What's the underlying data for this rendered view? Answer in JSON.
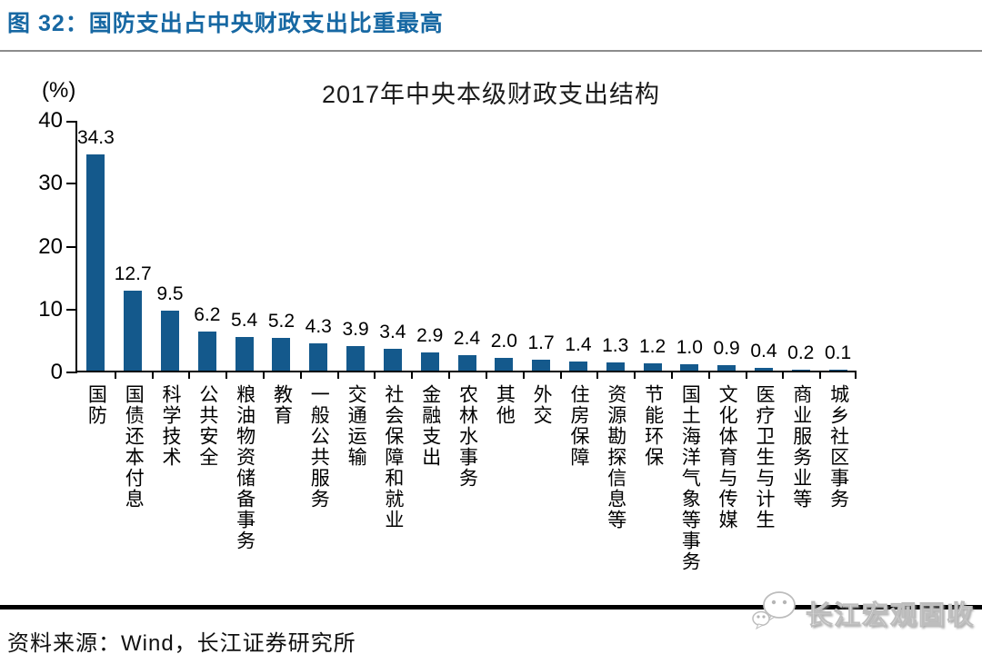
{
  "header": {
    "figure_title": "图 32：国防支出占中央财政支出比重最高"
  },
  "chart_data": {
    "type": "bar",
    "title": "2017年中央本级财政支出结构",
    "unit_label": "(%)",
    "xlabel": "",
    "ylabel": "",
    "ylim": [
      0,
      40
    ],
    "yticks": [
      0,
      10,
      20,
      30,
      40
    ],
    "grid": false,
    "legend_position": "none",
    "bar_color": "#14598C",
    "value_labels_shown": true,
    "categories": [
      "国防",
      "国债还本付息",
      "科学技术",
      "公共安全",
      "粮油物资储备事务",
      "教育",
      "一般公共服务",
      "交通运输",
      "社会保障和就业",
      "金融支出",
      "农林水事务",
      "其他",
      "外交",
      "住房保障",
      "资源勘探信息等",
      "节能环保",
      "国土海洋气象等事务",
      "文化体育与传媒",
      "医疗卫生与计生",
      "商业服务业等",
      "城乡社区事务"
    ],
    "values": [
      34.3,
      12.7,
      9.5,
      6.2,
      5.4,
      5.2,
      4.3,
      3.9,
      3.4,
      2.9,
      2.4,
      2.0,
      1.7,
      1.4,
      1.3,
      1.2,
      1.0,
      0.9,
      0.4,
      0.2,
      0.1
    ]
  },
  "footer": {
    "source": "资料来源：Wind，长江证券研究所",
    "watermark_text": "长江宏观固收",
    "watermark_icon": "wechat-icon"
  },
  "colors": {
    "title_blue": "#1768A3",
    "bar_blue": "#14598C",
    "axis_black": "#000000",
    "divider_gray": "#8c8c8c"
  }
}
